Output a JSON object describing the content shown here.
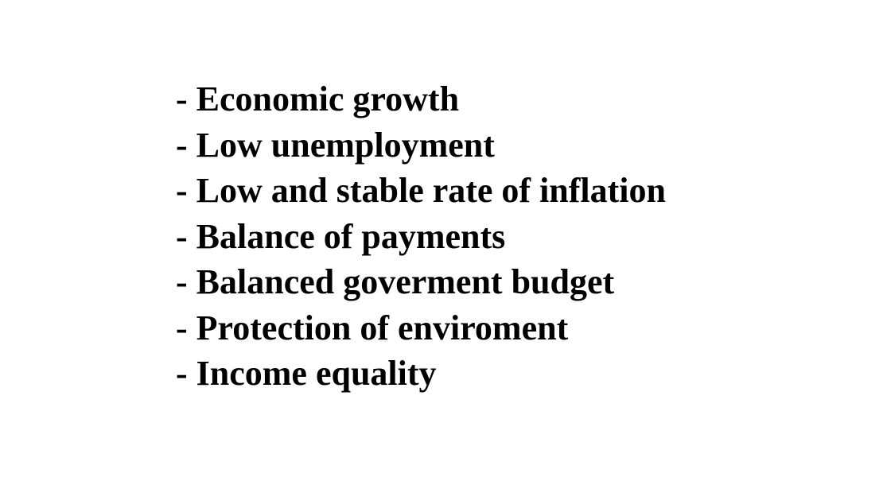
{
  "items": [
    "- Economic growth",
    "- Low unemployment",
    "- Low and stable rate of inflation",
    "- Balance of payments",
    "- Balanced goverment budget",
    "- Protection of enviroment",
    "- Income equality"
  ]
}
